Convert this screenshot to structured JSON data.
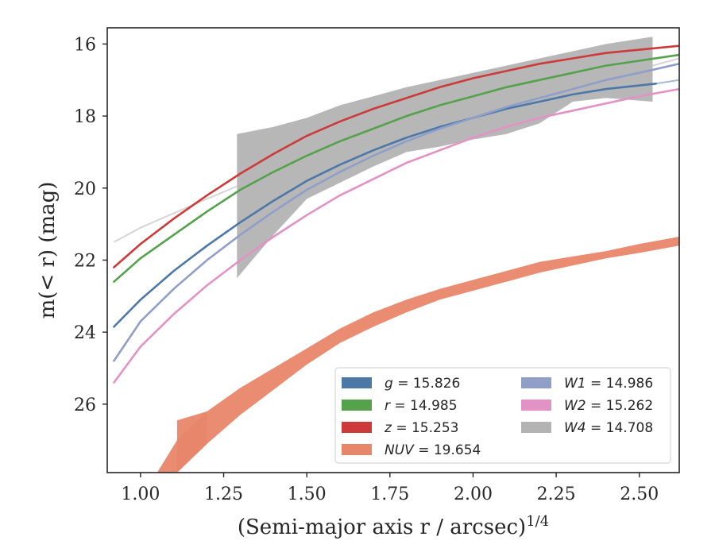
{
  "chart_data": {
    "type": "line",
    "xlabel": "(Semi-major axis r / arcsec)",
    "xlabel_sup": "1/4",
    "ylabel": "m(< r) (mag)",
    "xlim": [
      0.9,
      2.62
    ],
    "ylim": [
      27.9,
      15.55
    ],
    "y_inverted": true,
    "grid": false,
    "legend_position": "lower-right",
    "x_ticks": [
      1.0,
      1.25,
      1.5,
      1.75,
      2.0,
      2.25,
      2.5
    ],
    "x_tick_labels": [
      "1.00",
      "1.25",
      "1.50",
      "1.75",
      "2.00",
      "2.25",
      "2.50"
    ],
    "y_ticks": [
      16,
      18,
      20,
      22,
      24,
      26
    ],
    "y_tick_labels": [
      "16",
      "18",
      "20",
      "22",
      "24",
      "26"
    ],
    "series": [
      {
        "name": "g = 15.826",
        "color": "#4c78a8",
        "kind": "line",
        "x": [
          0.92,
          1.0,
          1.1,
          1.2,
          1.3,
          1.4,
          1.5,
          1.6,
          1.7,
          1.8,
          1.9,
          2.0,
          2.1,
          2.2,
          2.3,
          2.4,
          2.55
        ],
        "y": [
          23.85,
          23.1,
          22.3,
          21.6,
          20.95,
          20.35,
          19.8,
          19.35,
          18.95,
          18.6,
          18.3,
          18.05,
          17.8,
          17.6,
          17.4,
          17.25,
          17.1
        ],
        "faint_x": [
          2.55,
          2.62
        ],
        "faint_y": [
          17.1,
          17.0
        ]
      },
      {
        "name": "r = 14.985",
        "color": "#54a24b",
        "kind": "line",
        "x": [
          0.92,
          1.0,
          1.1,
          1.2,
          1.3,
          1.4,
          1.5,
          1.6,
          1.7,
          1.8,
          1.9,
          2.0,
          2.1,
          2.2,
          2.3,
          2.4,
          2.62
        ],
        "y": [
          22.6,
          21.95,
          21.3,
          20.65,
          20.05,
          19.55,
          19.1,
          18.7,
          18.35,
          18.0,
          17.7,
          17.45,
          17.2,
          17.0,
          16.8,
          16.6,
          16.3
        ]
      },
      {
        "name": "z = 15.253",
        "color": "#cd3a3a",
        "kind": "line",
        "x": [
          0.92,
          1.0,
          1.1,
          1.2,
          1.3,
          1.4,
          1.5,
          1.6,
          1.7,
          1.8,
          1.9,
          2.0,
          2.1,
          2.2,
          2.3,
          2.4,
          2.62
        ],
        "y": [
          22.2,
          21.55,
          20.85,
          20.2,
          19.6,
          19.05,
          18.55,
          18.15,
          17.8,
          17.5,
          17.2,
          16.95,
          16.75,
          16.55,
          16.4,
          16.25,
          16.05
        ]
      },
      {
        "name": "NUV = 19.654",
        "color": "#e8866a",
        "kind": "band",
        "x": [
          1.05,
          1.11,
          1.2,
          1.3,
          1.4,
          1.5,
          1.6,
          1.7,
          1.8,
          1.9,
          2.0,
          2.1,
          2.2,
          2.3,
          2.4,
          2.5,
          2.62
        ],
        "y_low": [
          27.9,
          27.0,
          26.2,
          25.55,
          25.0,
          24.45,
          23.9,
          23.45,
          23.1,
          22.8,
          22.55,
          22.3,
          22.05,
          21.9,
          21.75,
          21.55,
          21.35
        ],
        "y_high": [
          27.9,
          27.9,
          27.1,
          26.3,
          25.6,
          24.9,
          24.3,
          23.85,
          23.45,
          23.1,
          22.85,
          22.6,
          22.35,
          22.15,
          21.95,
          21.8,
          21.6
        ],
        "top_x": [
          1.11,
          1.11
        ],
        "top_y": [
          26.45,
          27.0
        ]
      },
      {
        "name": "W1 = 14.986",
        "color": "#8f9fc8",
        "kind": "line",
        "x": [
          0.92,
          1.0,
          1.1,
          1.2,
          1.3,
          1.4,
          1.5,
          1.6,
          1.7,
          1.8,
          1.9,
          2.0,
          2.1,
          2.2,
          2.3,
          2.4,
          2.5,
          2.62
        ],
        "y": [
          24.8,
          23.7,
          22.8,
          22.0,
          21.3,
          20.65,
          20.05,
          19.55,
          19.1,
          18.7,
          18.35,
          18.05,
          17.75,
          17.5,
          17.25,
          17.0,
          16.8,
          16.55
        ]
      },
      {
        "name": "W2 = 15.262",
        "color": "#e292c4",
        "kind": "line",
        "x": [
          0.92,
          1.0,
          1.1,
          1.2,
          1.3,
          1.4,
          1.5,
          1.6,
          1.7,
          1.8,
          1.9,
          2.0,
          2.1,
          2.2,
          2.3,
          2.4,
          2.5,
          2.62
        ],
        "y": [
          25.4,
          24.4,
          23.5,
          22.7,
          22.0,
          21.35,
          20.75,
          20.2,
          19.75,
          19.3,
          18.95,
          18.6,
          18.3,
          18.05,
          17.85,
          17.65,
          17.45,
          17.25
        ]
      },
      {
        "name": "W4 = 14.708",
        "color": "#b3b3b3",
        "kind": "band",
        "x": [
          1.29,
          1.4,
          1.5,
          1.6,
          1.7,
          1.8,
          1.9,
          2.0,
          2.1,
          2.2,
          2.3,
          2.4,
          2.54
        ],
        "y_low": [
          18.5,
          18.3,
          18.05,
          17.7,
          17.45,
          17.2,
          17.0,
          16.8,
          16.6,
          16.4,
          16.2,
          16.0,
          15.8
        ],
        "y_high": [
          22.5,
          21.3,
          20.3,
          19.85,
          19.4,
          19.0,
          18.85,
          18.65,
          18.5,
          18.2,
          17.6,
          17.5,
          17.6
        ],
        "faint_x": [
          0.92,
          1.0,
          1.1,
          1.2,
          1.29
        ],
        "faint_y": [
          21.5,
          21.1,
          20.7,
          20.3,
          19.95
        ],
        "ext_x": [
          2.54,
          2.62
        ],
        "ext_y": [
          16.6,
          16.4
        ]
      }
    ],
    "legend": {
      "columns": [
        [
          "g = 15.826",
          "r = 14.985",
          "z = 15.253",
          "NUV = 19.654"
        ],
        [
          "W1 = 14.986",
          "W2 = 15.262",
          "W4 = 14.708"
        ]
      ]
    }
  }
}
